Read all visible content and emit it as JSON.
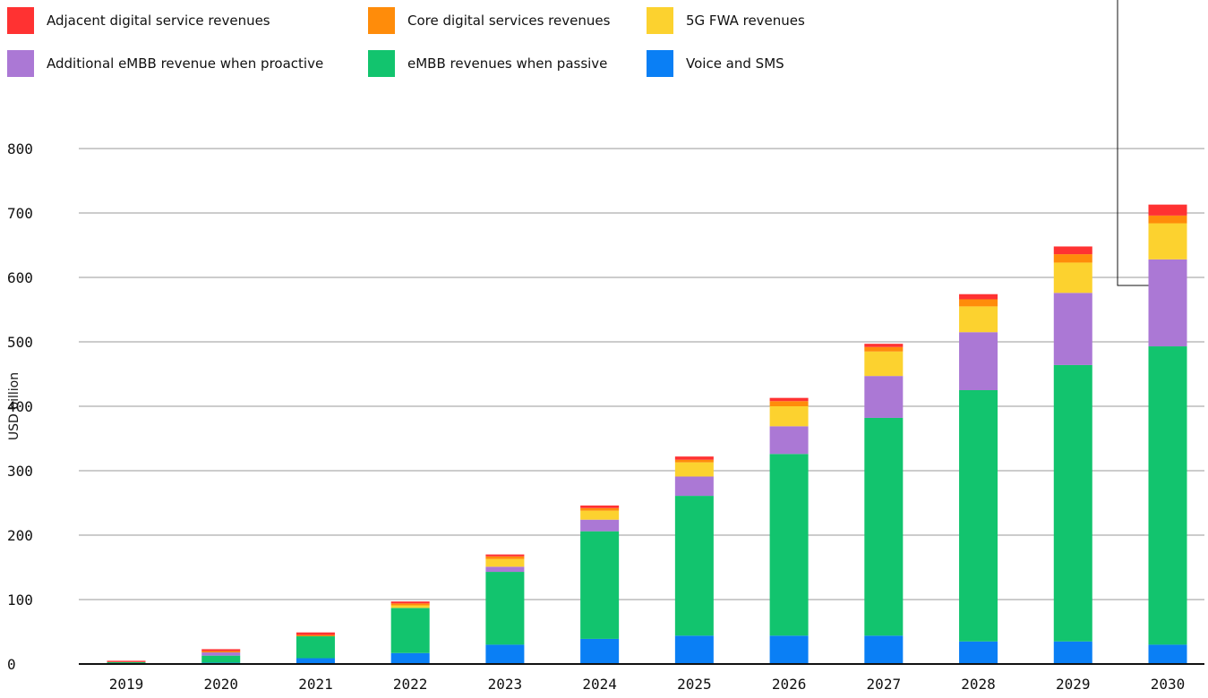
{
  "chart_data": {
    "type": "bar",
    "stacked": true,
    "title": "",
    "xlabel": "",
    "ylabel": "USD billion",
    "ylim": [
      0,
      800
    ],
    "yticks": [
      0,
      100,
      200,
      300,
      400,
      500,
      600,
      700,
      800
    ],
    "grid": true,
    "legend_position": "top-left",
    "categories": [
      "2019",
      "2020",
      "2021",
      "2022",
      "2023",
      "2024",
      "2025",
      "2026",
      "2027",
      "2028",
      "2029",
      "2030"
    ],
    "series": [
      {
        "name": "Voice and SMS",
        "color": "#0a7ff5",
        "values": [
          1,
          2,
          9,
          17,
          30,
          39,
          44,
          44,
          44,
          35,
          35,
          30
        ]
      },
      {
        "name": "eMBB revenues when passive",
        "color": "#12c46e",
        "values": [
          2,
          11,
          34,
          70,
          113,
          167,
          217,
          282,
          338,
          390,
          429,
          463
        ]
      },
      {
        "name": "Additional eMBB revenue when proactive",
        "color": "#ab78d5",
        "values": [
          0,
          5,
          0,
          0,
          8,
          18,
          30,
          43,
          65,
          90,
          112,
          135
        ]
      },
      {
        "name": "5G FWA revenues",
        "color": "#fcd22f",
        "values": [
          0,
          0,
          0,
          4,
          12,
          14,
          22,
          31,
          38,
          40,
          47,
          56
        ]
      },
      {
        "name": "Core digital services revenues",
        "color": "#ff8c0a",
        "values": [
          0,
          2,
          2,
          3,
          4,
          4,
          4,
          8,
          7,
          11,
          13,
          12
        ]
      },
      {
        "name": "Adjacent digital service revenues",
        "color": "#ff3232",
        "values": [
          2,
          3,
          4,
          3,
          3,
          4,
          5,
          5,
          5,
          8,
          12,
          17
        ]
      }
    ]
  },
  "legend": [
    {
      "label": "Adjacent digital service revenues",
      "color": "#ff3232"
    },
    {
      "label": "Core digital services revenues",
      "color": "#ff8c0a"
    },
    {
      "label": "5G FWA revenues",
      "color": "#fcd22f"
    },
    {
      "label": "Additional eMBB revenue when proactive",
      "color": "#ab78d5"
    },
    {
      "label": "eMBB revenues when passive",
      "color": "#12c46e"
    },
    {
      "label": "Voice and SMS",
      "color": "#0a7ff5"
    }
  ]
}
